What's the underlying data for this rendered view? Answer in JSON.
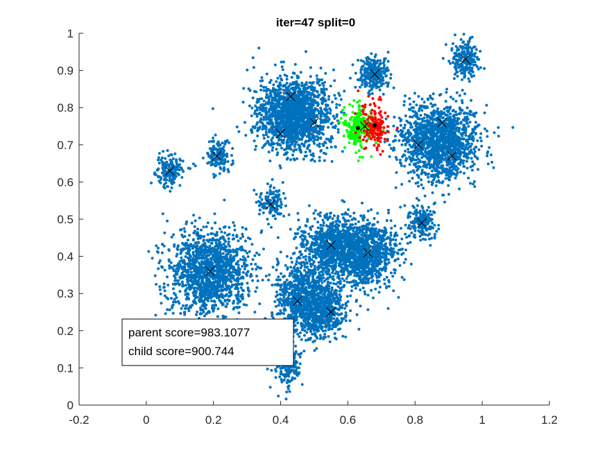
{
  "chart_data": {
    "type": "scatter",
    "title": "iter=47  split=0",
    "xlabel": "",
    "ylabel": "",
    "xlim": [
      -0.2,
      1.2
    ],
    "ylim": [
      0,
      1
    ],
    "xticks": [
      "-0.2",
      "0",
      "0.2",
      "0.4",
      "0.6",
      "0.8",
      "1",
      "1.2"
    ],
    "yticks": [
      "0",
      "0.1",
      "0.2",
      "0.3",
      "0.4",
      "0.5",
      "0.6",
      "0.7",
      "0.8",
      "0.9",
      "1"
    ],
    "grid": false,
    "legend": "none",
    "colors": {
      "points": "#0072BD",
      "parent_cluster": "#00FF00",
      "child_cluster": "#FF0000",
      "split_centers": "#000000",
      "cluster_center_marker": "#000000"
    },
    "cluster_centers": [
      {
        "x": 0.07,
        "y": 0.63
      },
      {
        "x": 0.21,
        "y": 0.67
      },
      {
        "x": 0.19,
        "y": 0.36
      },
      {
        "x": 0.37,
        "y": 0.54
      },
      {
        "x": 0.4,
        "y": 0.73
      },
      {
        "x": 0.43,
        "y": 0.83
      },
      {
        "x": 0.5,
        "y": 0.76
      },
      {
        "x": 0.45,
        "y": 0.28
      },
      {
        "x": 0.42,
        "y": 0.12
      },
      {
        "x": 0.55,
        "y": 0.43
      },
      {
        "x": 0.55,
        "y": 0.25
      },
      {
        "x": 0.66,
        "y": 0.41
      },
      {
        "x": 0.65,
        "y": 0.75
      },
      {
        "x": 0.68,
        "y": 0.89
      },
      {
        "x": 0.81,
        "y": 0.7
      },
      {
        "x": 0.88,
        "y": 0.76
      },
      {
        "x": 0.91,
        "y": 0.67
      },
      {
        "x": 0.82,
        "y": 0.49
      },
      {
        "x": 0.95,
        "y": 0.93
      }
    ],
    "blobs": [
      {
        "cx": 0.07,
        "cy": 0.63,
        "sx": 0.022,
        "sy": 0.022,
        "n": 160
      },
      {
        "cx": 0.21,
        "cy": 0.67,
        "sx": 0.02,
        "sy": 0.022,
        "n": 150
      },
      {
        "cx": 0.19,
        "cy": 0.36,
        "sx": 0.06,
        "sy": 0.055,
        "n": 1400
      },
      {
        "cx": 0.37,
        "cy": 0.54,
        "sx": 0.018,
        "sy": 0.022,
        "n": 130
      },
      {
        "cx": 0.44,
        "cy": 0.78,
        "sx": 0.055,
        "sy": 0.05,
        "n": 1600
      },
      {
        "cx": 0.47,
        "cy": 0.29,
        "sx": 0.045,
        "sy": 0.05,
        "n": 900
      },
      {
        "cx": 0.53,
        "cy": 0.25,
        "sx": 0.035,
        "sy": 0.035,
        "n": 400
      },
      {
        "cx": 0.42,
        "cy": 0.11,
        "sx": 0.02,
        "sy": 0.03,
        "n": 200
      },
      {
        "cx": 0.55,
        "cy": 0.43,
        "sx": 0.045,
        "sy": 0.04,
        "n": 700
      },
      {
        "cx": 0.65,
        "cy": 0.41,
        "sx": 0.05,
        "sy": 0.045,
        "n": 1000
      },
      {
        "cx": 0.68,
        "cy": 0.89,
        "sx": 0.022,
        "sy": 0.022,
        "n": 260
      },
      {
        "cx": 0.87,
        "cy": 0.71,
        "sx": 0.055,
        "sy": 0.05,
        "n": 1500
      },
      {
        "cx": 0.82,
        "cy": 0.49,
        "sx": 0.02,
        "sy": 0.025,
        "n": 200
      },
      {
        "cx": 0.95,
        "cy": 0.93,
        "sx": 0.022,
        "sy": 0.025,
        "n": 200
      }
    ],
    "split_cluster": {
      "parent": {
        "cx": 0.63,
        "cy": 0.75,
        "sx": 0.022,
        "sy": 0.028,
        "n": 220
      },
      "child": {
        "cx": 0.68,
        "cy": 0.75,
        "sx": 0.02,
        "sy": 0.028,
        "n": 150
      },
      "split_centers": [
        {
          "x": 0.63,
          "y": 0.745
        },
        {
          "x": 0.68,
          "y": 0.752
        }
      ]
    },
    "annotation": {
      "lines": [
        "parent score=983.1077",
        "child score=900.744"
      ]
    }
  }
}
